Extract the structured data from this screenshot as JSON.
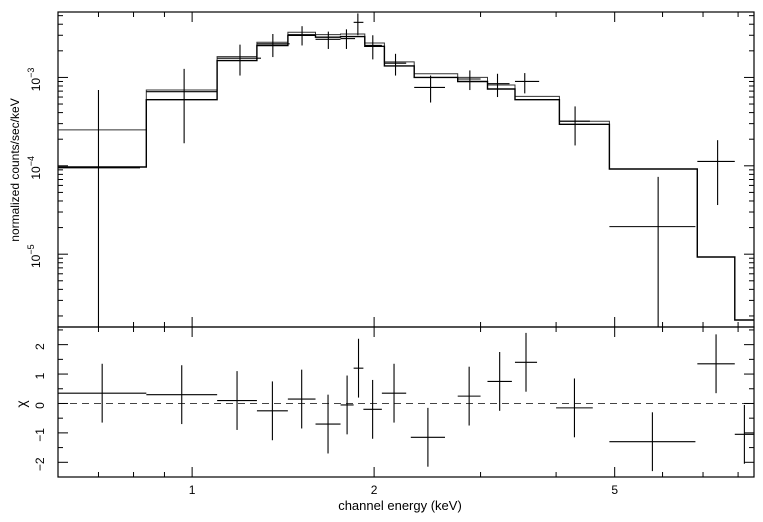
{
  "chart_data": {
    "type": "scatter",
    "xlabel": "channel energy (keV)",
    "x_scale": "log",
    "xlim": [
      0.6,
      8.5
    ],
    "x_ticks": [
      {
        "value": 1,
        "label": "1"
      },
      {
        "value": 2,
        "label": "2"
      },
      {
        "value": 5,
        "label": "5"
      }
    ],
    "panels": [
      {
        "id": "spectrum",
        "ylabel": "normalized counts/sec/keV",
        "y_scale": "log",
        "ylim": [
          1.5e-06,
          0.0055
        ],
        "y_ticks": [
          {
            "value": 0.001,
            "mantissa": "10",
            "exponent": "−3"
          },
          {
            "value": 0.0001,
            "mantissa": "10",
            "exponent": "−4"
          },
          {
            "value": 1e-05,
            "mantissa": "10",
            "exponent": "−5"
          }
        ],
        "data_points": [
          {
            "x": 0.7,
            "xlo": 0.6,
            "xhi": 0.82,
            "y": 9.5e-05,
            "ylo": 1.5e-06,
            "yhi": 0.00072
          },
          {
            "x": 0.97,
            "xlo": 0.84,
            "xhi": 1.1,
            "y": 0.00069,
            "ylo": 0.00018,
            "yhi": 0.00125
          },
          {
            "x": 1.2,
            "xlo": 1.1,
            "xhi": 1.3,
            "y": 0.00165,
            "ylo": 0.00105,
            "yhi": 0.00235
          },
          {
            "x": 1.36,
            "xlo": 1.28,
            "xhi": 1.45,
            "y": 0.0024,
            "ylo": 0.0017,
            "yhi": 0.0031
          },
          {
            "x": 1.52,
            "xlo": 1.44,
            "xhi": 1.6,
            "y": 0.00305,
            "ylo": 0.0023,
            "yhi": 0.0038
          },
          {
            "x": 1.68,
            "xlo": 1.6,
            "xhi": 1.76,
            "y": 0.0027,
            "ylo": 0.0021,
            "yhi": 0.0033
          },
          {
            "x": 1.8,
            "xlo": 1.76,
            "xhi": 1.86,
            "y": 0.00275,
            "ylo": 0.0021,
            "yhi": 0.0035
          },
          {
            "x": 1.88,
            "xlo": 1.85,
            "xhi": 1.92,
            "y": 0.0042,
            "ylo": 0.003,
            "yhi": 0.0053
          },
          {
            "x": 1.99,
            "xlo": 1.93,
            "xhi": 2.06,
            "y": 0.0023,
            "ylo": 0.0016,
            "yhi": 0.003
          },
          {
            "x": 2.17,
            "xlo": 2.08,
            "xhi": 2.26,
            "y": 0.00145,
            "ylo": 0.00105,
            "yhi": 0.00185
          },
          {
            "x": 2.48,
            "xlo": 2.33,
            "xhi": 2.62,
            "y": 0.00077,
            "ylo": 0.00052,
            "yhi": 0.00105
          },
          {
            "x": 2.88,
            "xlo": 2.75,
            "xhi": 3.0,
            "y": 0.00096,
            "ylo": 0.00072,
            "yhi": 0.0012
          },
          {
            "x": 3.2,
            "xlo": 3.08,
            "xhi": 3.35,
            "y": 0.00085,
            "ylo": 0.0006,
            "yhi": 0.0011
          },
          {
            "x": 3.55,
            "xlo": 3.42,
            "xhi": 3.75,
            "y": 0.0009,
            "ylo": 0.00066,
            "yhi": 0.00112
          },
          {
            "x": 4.3,
            "xlo": 4.05,
            "xhi": 4.55,
            "y": 0.00032,
            "ylo": 0.00017,
            "yhi": 0.00047
          },
          {
            "x": 5.9,
            "xlo": 4.9,
            "xhi": 6.8,
            "y": 2.05e-05,
            "ylo": 1.5e-06,
            "yhi": 7.5e-05
          },
          {
            "x": 7.4,
            "xlo": 6.85,
            "xhi": 7.9,
            "y": 0.000112,
            "ylo": 3.6e-05,
            "yhi": 0.000195
          }
        ],
        "model_bins": [
          {
            "xlo": 0.6,
            "xhi": 0.84,
            "y": 9.7e-05,
            "y_alt": 0.000255
          },
          {
            "xlo": 0.84,
            "xhi": 1.1,
            "y": 0.00056,
            "y_alt": 0.00072
          },
          {
            "xlo": 1.1,
            "xhi": 1.28,
            "y": 0.00155,
            "y_alt": 0.00172
          },
          {
            "xlo": 1.28,
            "xhi": 1.44,
            "y": 0.0023,
            "y_alt": 0.0025
          },
          {
            "xlo": 1.44,
            "xhi": 1.6,
            "y": 0.003,
            "y_alt": 0.00325
          },
          {
            "xlo": 1.6,
            "xhi": 1.76,
            "y": 0.00285,
            "y_alt": 0.00305
          },
          {
            "xlo": 1.76,
            "xhi": 1.93,
            "y": 0.0029,
            "y_alt": 0.0031
          },
          {
            "xlo": 1.93,
            "xhi": 2.08,
            "y": 0.00225,
            "y_alt": 0.00245
          },
          {
            "xlo": 2.08,
            "xhi": 2.33,
            "y": 0.00135,
            "y_alt": 0.0015
          },
          {
            "xlo": 2.33,
            "xhi": 2.75,
            "y": 0.001,
            "y_alt": 0.0011
          },
          {
            "xlo": 2.75,
            "xhi": 3.08,
            "y": 0.0009,
            "y_alt": 0.001
          },
          {
            "xlo": 3.08,
            "xhi": 3.42,
            "y": 0.00074,
            "y_alt": 0.00082
          },
          {
            "xlo": 3.42,
            "xhi": 4.05,
            "y": 0.00056,
            "y_alt": 0.00061
          },
          {
            "xlo": 4.05,
            "xhi": 4.9,
            "y": 0.000295,
            "y_alt": 0.00032
          },
          {
            "xlo": 4.9,
            "xhi": 6.85,
            "y": 9.2e-05,
            "y_alt": 9.2e-05
          },
          {
            "xlo": 6.85,
            "xhi": 7.9,
            "y": 9.3e-06,
            "y_alt": 9.3e-06
          },
          {
            "xlo": 7.9,
            "xhi": 8.5,
            "y": 1.8e-06,
            "y_alt": 1.8e-06
          }
        ]
      },
      {
        "id": "residuals",
        "ylabel": "χ",
        "y_scale": "linear",
        "ylim": [
          -2.5,
          2.6
        ],
        "y_ticks": [
          {
            "value": 2,
            "label": "2"
          },
          {
            "value": 1,
            "label": "1"
          },
          {
            "value": 0,
            "label": "0"
          },
          {
            "value": -1,
            "label": "−1"
          },
          {
            "value": -2,
            "label": "−2"
          }
        ],
        "reference_line": 0,
        "data_points": [
          {
            "xlo": 0.6,
            "xhi": 0.84,
            "y": 0.35,
            "yerr": 1.0
          },
          {
            "xlo": 0.84,
            "xhi": 1.1,
            "y": 0.3,
            "yerr": 1.0
          },
          {
            "xlo": 1.1,
            "xhi": 1.28,
            "y": 0.1,
            "yerr": 1.0
          },
          {
            "xlo": 1.28,
            "xhi": 1.44,
            "y": -0.25,
            "yerr": 1.0
          },
          {
            "xlo": 1.44,
            "xhi": 1.6,
            "y": 0.15,
            "yerr": 1.0
          },
          {
            "xlo": 1.6,
            "xhi": 1.76,
            "y": -0.7,
            "yerr": 1.0
          },
          {
            "xlo": 1.76,
            "xhi": 1.85,
            "y": -0.05,
            "yerr": 1.0
          },
          {
            "xlo": 1.85,
            "xhi": 1.92,
            "y": 1.2,
            "yerr": 1.0
          },
          {
            "xlo": 1.92,
            "xhi": 2.06,
            "y": -0.2,
            "yerr": 1.0
          },
          {
            "xlo": 2.06,
            "xhi": 2.26,
            "y": 0.35,
            "yerr": 1.0
          },
          {
            "xlo": 2.3,
            "xhi": 2.62,
            "y": -1.15,
            "yerr": 1.0
          },
          {
            "xlo": 2.75,
            "xhi": 3.0,
            "y": 0.25,
            "yerr": 1.0
          },
          {
            "xlo": 3.08,
            "xhi": 3.38,
            "y": 0.75,
            "yerr": 1.0
          },
          {
            "xlo": 3.42,
            "xhi": 3.72,
            "y": 1.4,
            "yerr": 1.0
          },
          {
            "xlo": 4.0,
            "xhi": 4.6,
            "y": -0.15,
            "yerr": 1.0
          },
          {
            "xlo": 4.9,
            "xhi": 6.8,
            "y": -1.3,
            "yerr": 1.0
          },
          {
            "xlo": 6.85,
            "xhi": 7.9,
            "y": 1.35,
            "yerr": 1.0
          },
          {
            "xlo": 7.9,
            "xhi": 8.5,
            "y": -1.05,
            "yerr": 1.0
          }
        ]
      }
    ]
  }
}
